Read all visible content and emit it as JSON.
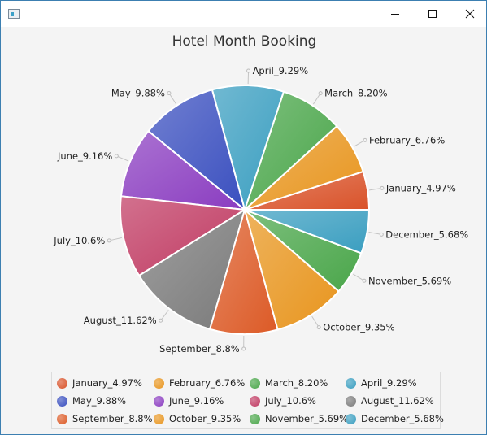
{
  "window": {
    "title": "",
    "minimize_icon": "minimize-icon",
    "maximize_icon": "maximize-icon",
    "close_icon": "close-icon"
  },
  "chart_data": {
    "type": "pie",
    "title": "Hotel Month Booking",
    "start_angle_deg": 0,
    "direction": "counterclockwise",
    "legend_position": "bottom",
    "slices": [
      {
        "label": "January_4.97%",
        "value": 4.97,
        "color": "#d9532a"
      },
      {
        "label": "February_6.76%",
        "value": 6.76,
        "color": "#e8951e"
      },
      {
        "label": "March_8.20%",
        "value": 8.2,
        "color": "#4aa64a"
      },
      {
        "label": "April_9.29%",
        "value": 9.29,
        "color": "#3a9ec0"
      },
      {
        "label": "May_9.88%",
        "value": 9.88,
        "color": "#3a4fbf"
      },
      {
        "label": "June_9.16%",
        "value": 9.16,
        "color": "#8a3cc0"
      },
      {
        "label": "July_10.6%",
        "value": 10.6,
        "color": "#c03a62"
      },
      {
        "label": "August_11.62%",
        "value": 11.62,
        "color": "#7a7a7a"
      },
      {
        "label": "September_8.8%",
        "value": 8.8,
        "color": "#dc5a26"
      },
      {
        "label": "October_9.35%",
        "value": 9.35,
        "color": "#e8951e"
      },
      {
        "label": "November_5.69%",
        "value": 5.69,
        "color": "#4aa64a"
      },
      {
        "label": "December_5.68%",
        "value": 5.68,
        "color": "#3a9ec0"
      }
    ]
  }
}
